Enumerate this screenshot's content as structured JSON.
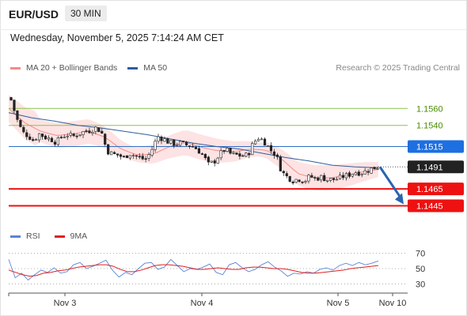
{
  "header": {
    "symbol": "EUR/USD",
    "timeframe": "30 MIN",
    "datetime": "Wednesday, November 5, 2025 7:14:24 AM CET"
  },
  "legend": {
    "items": [
      {
        "label": "MA 20 + Bollinger Bands",
        "color": "#f48a8a"
      },
      {
        "label": "MA 50",
        "color": "#2e5d9e"
      }
    ],
    "research": "Research © 2025 Trading Central"
  },
  "rsi_legend": {
    "items": [
      {
        "label": "RSI",
        "color": "#5b84d6"
      },
      {
        "label": "9MA",
        "color": "#e02020"
      }
    ]
  },
  "chart_data": [
    {
      "type": "candlestick",
      "y_range": [
        1.1425,
        1.1578
      ],
      "x_labels": [
        "Nov 3",
        "Nov 4",
        "Nov 5",
        "Nov 10"
      ],
      "levels": [
        {
          "value": 1.156,
          "label": "1.1560",
          "style": "thin",
          "color": "#8bc34a",
          "text_color": "#4a8d00"
        },
        {
          "value": 1.154,
          "label": "1.1540",
          "style": "thin",
          "color": "#8bc34a",
          "text_color": "#4a8d00"
        },
        {
          "value": 1.1515,
          "label": "1.1515",
          "style": "thin",
          "color": "#2e6fc4",
          "text_color": "#ffffff",
          "box": "#1e6fe0"
        },
        {
          "value": 1.1491,
          "label": "1.1491",
          "style": "dotted",
          "color": "#555555",
          "text_color": "#ffffff",
          "box": "#222222"
        },
        {
          "value": 1.1465,
          "label": "1.1465",
          "style": "thick",
          "color": "#ee1111",
          "text_color": "#ffffff",
          "box": "#ee1111"
        },
        {
          "value": 1.1445,
          "label": "1.1445",
          "style": "thick",
          "color": "#ee1111",
          "text_color": "#ffffff",
          "box": "#ee1111"
        }
      ],
      "close_path": [
        1.157,
        1.1548,
        1.1532,
        1.1528,
        1.1522,
        1.153,
        1.1526,
        1.1524,
        1.152,
        1.1527,
        1.1529,
        1.1527,
        1.153,
        1.1533,
        1.1534,
        1.1537,
        1.1533,
        1.151,
        1.1506,
        1.1505,
        1.1502,
        1.1507,
        1.1504,
        1.1501,
        1.15,
        1.1512,
        1.1527,
        1.1524,
        1.152,
        1.1518,
        1.1519,
        1.1517,
        1.1516,
        1.1512,
        1.1505,
        1.1494,
        1.1497,
        1.1506,
        1.1512,
        1.1506,
        1.1505,
        1.1504,
        1.1505,
        1.152,
        1.1526,
        1.152,
        1.1511,
        1.1505,
        1.1485,
        1.1479,
        1.1475,
        1.1477,
        1.1474,
        1.148,
        1.1477,
        1.1479,
        1.1476,
        1.1476,
        1.1477,
        1.148,
        1.1482,
        1.1485,
        1.1484,
        1.1486,
        1.1489,
        1.1491
      ],
      "ma50": [
        1.1555,
        1.1549,
        1.1545,
        1.154,
        1.1537,
        1.1533,
        1.1529,
        1.1524,
        1.1519,
        1.1515,
        1.1512,
        1.1507,
        1.1502,
        1.1498,
        1.1493,
        1.1491,
        1.149
      ],
      "ma20": [
        1.156,
        1.1543,
        1.1533,
        1.1528,
        1.153,
        1.1533,
        1.1526,
        1.1512,
        1.1505,
        1.1506,
        1.1515,
        1.152,
        1.1514,
        1.151,
        1.1509,
        1.1512,
        1.1511,
        1.15,
        1.1483,
        1.1478,
        1.1478,
        1.1481,
        1.1485,
        1.1488
      ],
      "forecast": {
        "from": 1.1491,
        "to": 1.1445
      }
    },
    {
      "type": "line",
      "name": "RSI",
      "y_range": [
        20,
        80
      ],
      "ticks": [
        70,
        50,
        30
      ],
      "rsi": [
        62,
        38,
        44,
        35,
        42,
        48,
        45,
        51,
        44,
        46,
        55,
        58,
        50,
        53,
        57,
        61,
        48,
        39,
        45,
        42,
        50,
        57,
        58,
        49,
        52,
        62,
        54,
        46,
        50,
        49,
        52,
        56,
        45,
        42,
        55,
        58,
        51,
        46,
        49,
        55,
        59,
        52,
        47,
        40,
        44,
        43,
        46,
        44,
        49,
        51,
        48,
        54,
        57,
        54,
        58,
        55,
        57,
        60
      ],
      "ma9": [
        48,
        45,
        42,
        40,
        41,
        44,
        45,
        47,
        48,
        50,
        52,
        53,
        54,
        55,
        55,
        53,
        49,
        46,
        46,
        48,
        51,
        54,
        55,
        55,
        54,
        53,
        51,
        49,
        49,
        50,
        51,
        50,
        49,
        49,
        51,
        52,
        52,
        51,
        50,
        50,
        49,
        47,
        45,
        44,
        44,
        45,
        46,
        47,
        48,
        50,
        51,
        52,
        53,
        54
      ]
    }
  ]
}
